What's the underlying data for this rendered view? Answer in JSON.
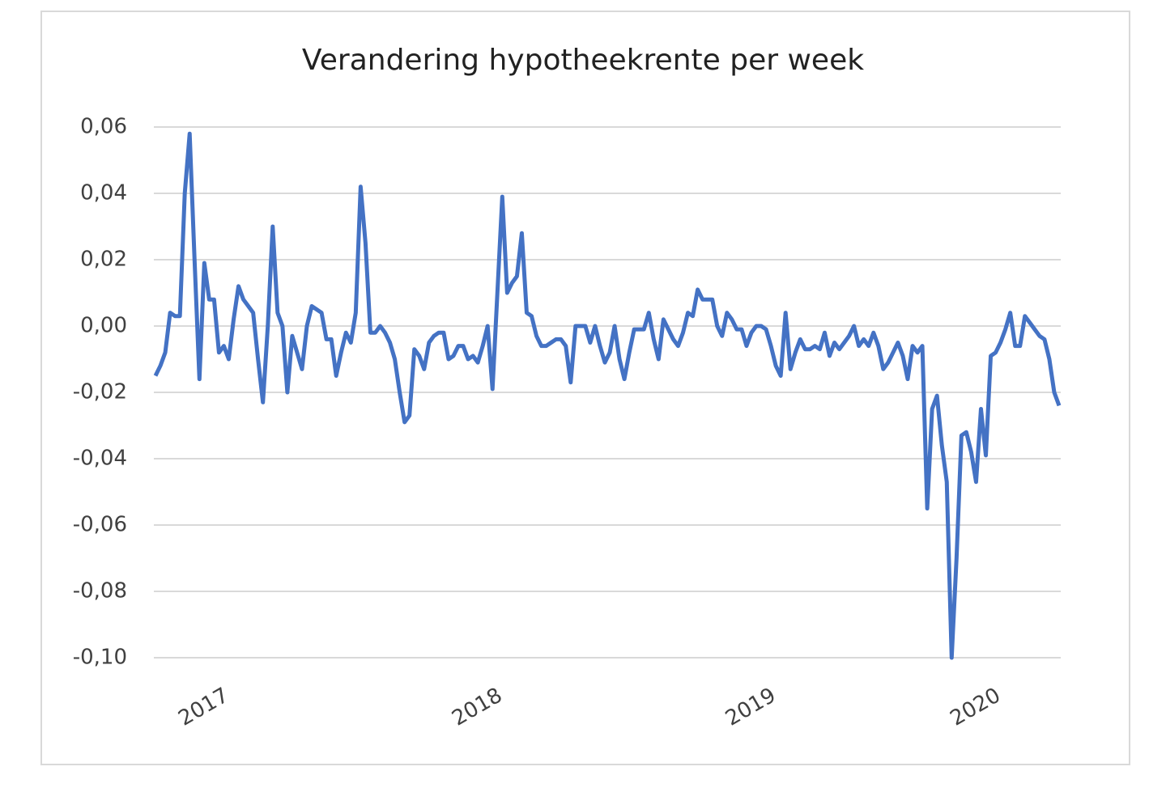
{
  "chart_data": {
    "type": "line",
    "title": "Verandering hypotheekrente per week",
    "categories": [
      null,
      null,
      null,
      null,
      null,
      null,
      null,
      null,
      null,
      null,
      null,
      null,
      null,
      null,
      "2017",
      null,
      null,
      null,
      null,
      null,
      null,
      null,
      null,
      null,
      null,
      null,
      null,
      null,
      null,
      null,
      null,
      null,
      null,
      null,
      null,
      null,
      null,
      null,
      null,
      null,
      null,
      null,
      null,
      null,
      null,
      null,
      null,
      null,
      null,
      null,
      null,
      null,
      null,
      null,
      null,
      null,
      null,
      null,
      null,
      null,
      null,
      null,
      null,
      null,
      null,
      null,
      null,
      null,
      null,
      null,
      "2018",
      null,
      null,
      null,
      null,
      null,
      null,
      null,
      null,
      null,
      null,
      null,
      null,
      null,
      null,
      null,
      null,
      null,
      null,
      null,
      null,
      null,
      null,
      null,
      null,
      null,
      null,
      null,
      null,
      null,
      null,
      null,
      null,
      null,
      null,
      null,
      null,
      null,
      null,
      null,
      null,
      null,
      null,
      null,
      null,
      null,
      null,
      null,
      null,
      null,
      null,
      null,
      null,
      null,
      null,
      null,
      "2019",
      null,
      null,
      null,
      null,
      null,
      null,
      null,
      null,
      null,
      null,
      null,
      null,
      null,
      null,
      null,
      null,
      null,
      null,
      null,
      null,
      null,
      null,
      null,
      null,
      null,
      null,
      null,
      null,
      null,
      null,
      null,
      null,
      null,
      null,
      null,
      null,
      null,
      null,
      null,
      null,
      null,
      null,
      null,
      null,
      null,
      "2020",
      null,
      null,
      null,
      null,
      null,
      null,
      null,
      null,
      null,
      null,
      null,
      null,
      null
    ],
    "values": [
      -0.015,
      -0.012,
      -0.008,
      0.004,
      0.003,
      0.003,
      0.04,
      0.058,
      0.02,
      -0.016,
      0.019,
      0.008,
      0.008,
      -0.008,
      -0.006,
      -0.01,
      0.002,
      0.012,
      0.008,
      0.006,
      0.004,
      -0.01,
      -0.023,
      0.0,
      0.03,
      0.004,
      0.0,
      -0.02,
      -0.003,
      -0.008,
      -0.013,
      0.0,
      0.006,
      0.005,
      0.004,
      -0.004,
      -0.004,
      -0.015,
      -0.008,
      -0.002,
      -0.005,
      0.004,
      0.042,
      0.025,
      -0.002,
      -0.002,
      0.0,
      -0.002,
      -0.005,
      -0.01,
      -0.02,
      -0.029,
      -0.027,
      -0.007,
      -0.009,
      -0.013,
      -0.005,
      -0.003,
      -0.002,
      -0.002,
      -0.01,
      -0.009,
      -0.006,
      -0.006,
      -0.01,
      -0.009,
      -0.011,
      -0.006,
      0.0,
      -0.019,
      0.01,
      0.039,
      0.01,
      0.013,
      0.015,
      0.028,
      0.004,
      0.003,
      -0.003,
      -0.006,
      -0.006,
      -0.005,
      -0.004,
      -0.004,
      -0.006,
      -0.017,
      0.0,
      0.0,
      0.0,
      -0.005,
      0.0,
      -0.006,
      -0.011,
      -0.008,
      0.0,
      -0.01,
      -0.016,
      -0.008,
      -0.001,
      -0.001,
      -0.001,
      0.004,
      -0.004,
      -0.01,
      0.002,
      -0.001,
      -0.004,
      -0.006,
      -0.002,
      0.004,
      0.003,
      0.011,
      0.008,
      0.008,
      0.008,
      0.0,
      -0.003,
      0.004,
      0.002,
      -0.001,
      -0.001,
      -0.006,
      -0.002,
      0.0,
      0.0,
      -0.001,
      -0.006,
      -0.012,
      -0.015,
      0.004,
      -0.013,
      -0.008,
      -0.004,
      -0.007,
      -0.007,
      -0.006,
      -0.007,
      -0.002,
      -0.009,
      -0.005,
      -0.007,
      -0.005,
      -0.003,
      0.0,
      -0.006,
      -0.004,
      -0.006,
      -0.002,
      -0.006,
      -0.013,
      -0.011,
      -0.008,
      -0.005,
      -0.009,
      -0.016,
      -0.006,
      -0.008,
      -0.006,
      -0.055,
      -0.025,
      -0.021,
      -0.036,
      -0.047,
      -0.1,
      -0.07,
      -0.033,
      -0.032,
      -0.038,
      -0.047,
      -0.025,
      -0.039,
      -0.009,
      -0.008,
      -0.005,
      -0.001,
      0.004,
      -0.006,
      -0.006,
      0.003,
      0.001,
      -0.001,
      -0.003,
      -0.004,
      -0.01,
      -0.02,
      -0.024
    ],
    "color": "#4472c4",
    "ylim": [
      -0.1,
      0.06
    ],
    "yticks": [
      {
        "value": -0.1,
        "label": "-0,10"
      },
      {
        "value": -0.08,
        "label": "-0,08"
      },
      {
        "value": -0.06,
        "label": "-0,06"
      },
      {
        "value": -0.04,
        "label": "-0,04"
      },
      {
        "value": -0.02,
        "label": "-0,02"
      },
      {
        "value": 0,
        "label": "0,00"
      },
      {
        "value": 0.02,
        "label": "0,02"
      },
      {
        "value": 0.04,
        "label": "0,04"
      },
      {
        "value": 0.06,
        "label": "0,06"
      }
    ],
    "grid": true
  }
}
